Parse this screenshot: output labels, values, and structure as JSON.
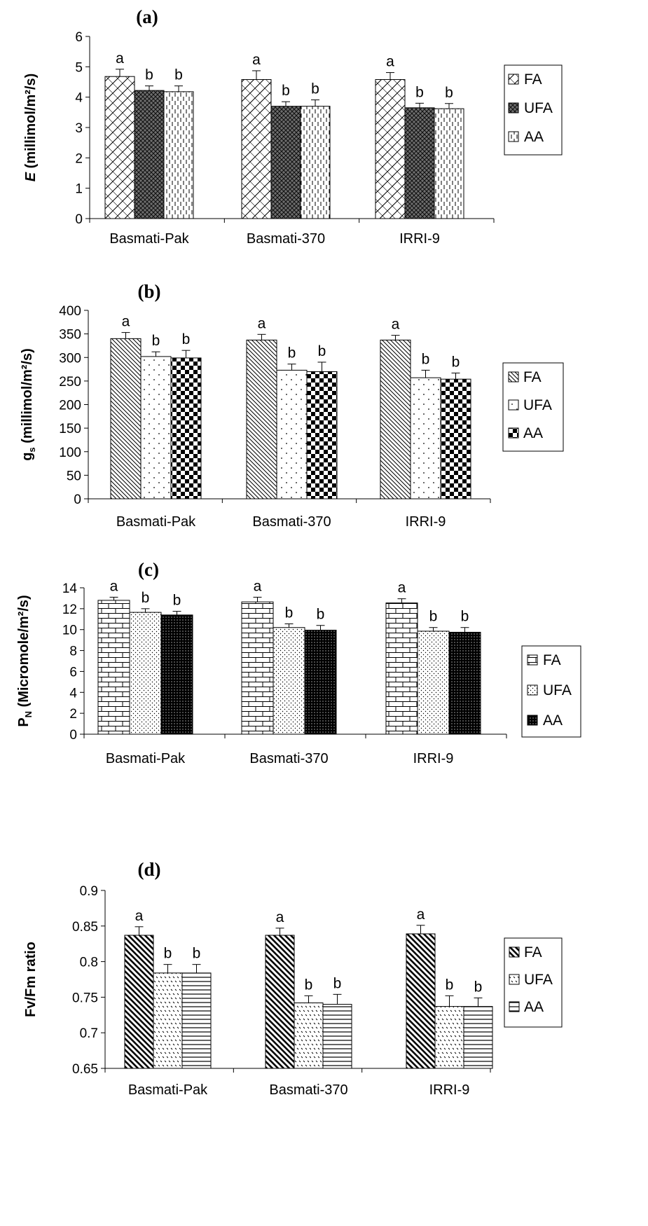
{
  "chart_data": [
    {
      "type": "bar",
      "panel_label": "(a)",
      "ylabel_italic": "E",
      "ylabel_rest": " (millimol/m²/s)",
      "categories": [
        "Basmati-Pak",
        "Basmati-370",
        "IRRI-9"
      ],
      "ylim": [
        0,
        6
      ],
      "yticks": [
        "0",
        "1",
        "2",
        "3",
        "4",
        "5",
        "6"
      ],
      "series": [
        {
          "name": "FA",
          "values": [
            4.68,
            4.58,
            4.58
          ],
          "errors": [
            0.24,
            0.29,
            0.23
          ],
          "letters": [
            "a",
            "a",
            "a"
          ],
          "pattern": "crosshatch-light"
        },
        {
          "name": "UFA",
          "values": [
            4.22,
            3.7,
            3.65
          ],
          "errors": [
            0.15,
            0.15,
            0.15
          ],
          "letters": [
            "b",
            "b",
            "b"
          ],
          "pattern": "crosshatch-dark"
        },
        {
          "name": "AA",
          "values": [
            4.18,
            3.7,
            3.62
          ],
          "errors": [
            0.19,
            0.21,
            0.17
          ],
          "letters": [
            "b",
            "b",
            "b"
          ],
          "pattern": "vertical-dashes"
        }
      ],
      "legend_position": "right",
      "grid": false
    },
    {
      "type": "bar",
      "panel_label": "(b)",
      "ylabel_main": "g",
      "ylabel_sub": "s",
      "ylabel_rest": " (millimol/m²/s)",
      "categories": [
        "Basmati-Pak",
        "Basmati-370",
        "IRRI-9"
      ],
      "ylim": [
        0,
        400
      ],
      "yticks": [
        "0",
        "50",
        "100",
        "150",
        "200",
        "250",
        "300",
        "350",
        "400"
      ],
      "series": [
        {
          "name": "FA",
          "values": [
            340,
            337,
            337
          ],
          "errors": [
            13,
            12,
            10
          ],
          "letters": [
            "a",
            "a",
            "a"
          ],
          "pattern": "diagonal-lines"
        },
        {
          "name": "UFA",
          "values": [
            302,
            273,
            257
          ],
          "errors": [
            10,
            13,
            16
          ],
          "letters": [
            "b",
            "b",
            "b"
          ],
          "pattern": "dots"
        },
        {
          "name": "AA",
          "values": [
            299,
            270,
            254
          ],
          "errors": [
            16,
            20,
            13
          ],
          "letters": [
            "b",
            "b",
            "b"
          ],
          "pattern": "checkerboard"
        }
      ],
      "legend_position": "right",
      "grid": false
    },
    {
      "type": "bar",
      "panel_label": "(c)",
      "ylabel_main": "P",
      "ylabel_sub": "N",
      "ylabel_rest": " (Micromole/m²/s)",
      "categories": [
        "Basmati-Pak",
        "Basmati-370",
        "IRRI-9"
      ],
      "ylim": [
        0,
        14
      ],
      "yticks": [
        "0",
        "2",
        "4",
        "6",
        "8",
        "10",
        "12",
        "14"
      ],
      "series": [
        {
          "name": "FA",
          "values": [
            12.8,
            12.65,
            12.55
          ],
          "errors": [
            0.3,
            0.45,
            0.4
          ],
          "letters": [
            "a",
            "a",
            "a"
          ],
          "pattern": "bricks"
        },
        {
          "name": "UFA",
          "values": [
            11.65,
            10.2,
            9.85
          ],
          "errors": [
            0.35,
            0.35,
            0.35
          ],
          "letters": [
            "b",
            "b",
            "b"
          ],
          "pattern": "fine-dots"
        },
        {
          "name": "AA",
          "values": [
            11.4,
            9.95,
            9.75
          ],
          "errors": [
            0.35,
            0.45,
            0.45
          ],
          "letters": [
            "b",
            "b",
            "b"
          ],
          "pattern": "dense-black"
        }
      ],
      "legend_position": "right",
      "grid": false
    },
    {
      "type": "bar",
      "panel_label": "(d)",
      "ylabel": "Fv/Fm ratio",
      "categories": [
        "Basmati-Pak",
        "Basmati-370",
        "IRRI-9"
      ],
      "ylim": [
        0.65,
        0.9
      ],
      "yticks": [
        "0.65",
        "0.7",
        "0.75",
        "0.8",
        "0.85",
        "0.9"
      ],
      "series": [
        {
          "name": "FA",
          "values": [
            0.837,
            0.837,
            0.839
          ],
          "errors": [
            0.012,
            0.01,
            0.012
          ],
          "letters": [
            "a",
            "a",
            "a"
          ],
          "pattern": "thick-diagonal"
        },
        {
          "name": "UFA",
          "values": [
            0.784,
            0.742,
            0.737
          ],
          "errors": [
            0.012,
            0.01,
            0.015
          ],
          "letters": [
            "b",
            "b",
            "b"
          ],
          "pattern": "zigzag-dots"
        },
        {
          "name": "AA",
          "values": [
            0.784,
            0.74,
            0.737
          ],
          "errors": [
            0.012,
            0.014,
            0.012
          ],
          "letters": [
            "b",
            "b",
            "b"
          ],
          "pattern": "horizontal-lines"
        }
      ],
      "legend_position": "right",
      "grid": false
    }
  ]
}
